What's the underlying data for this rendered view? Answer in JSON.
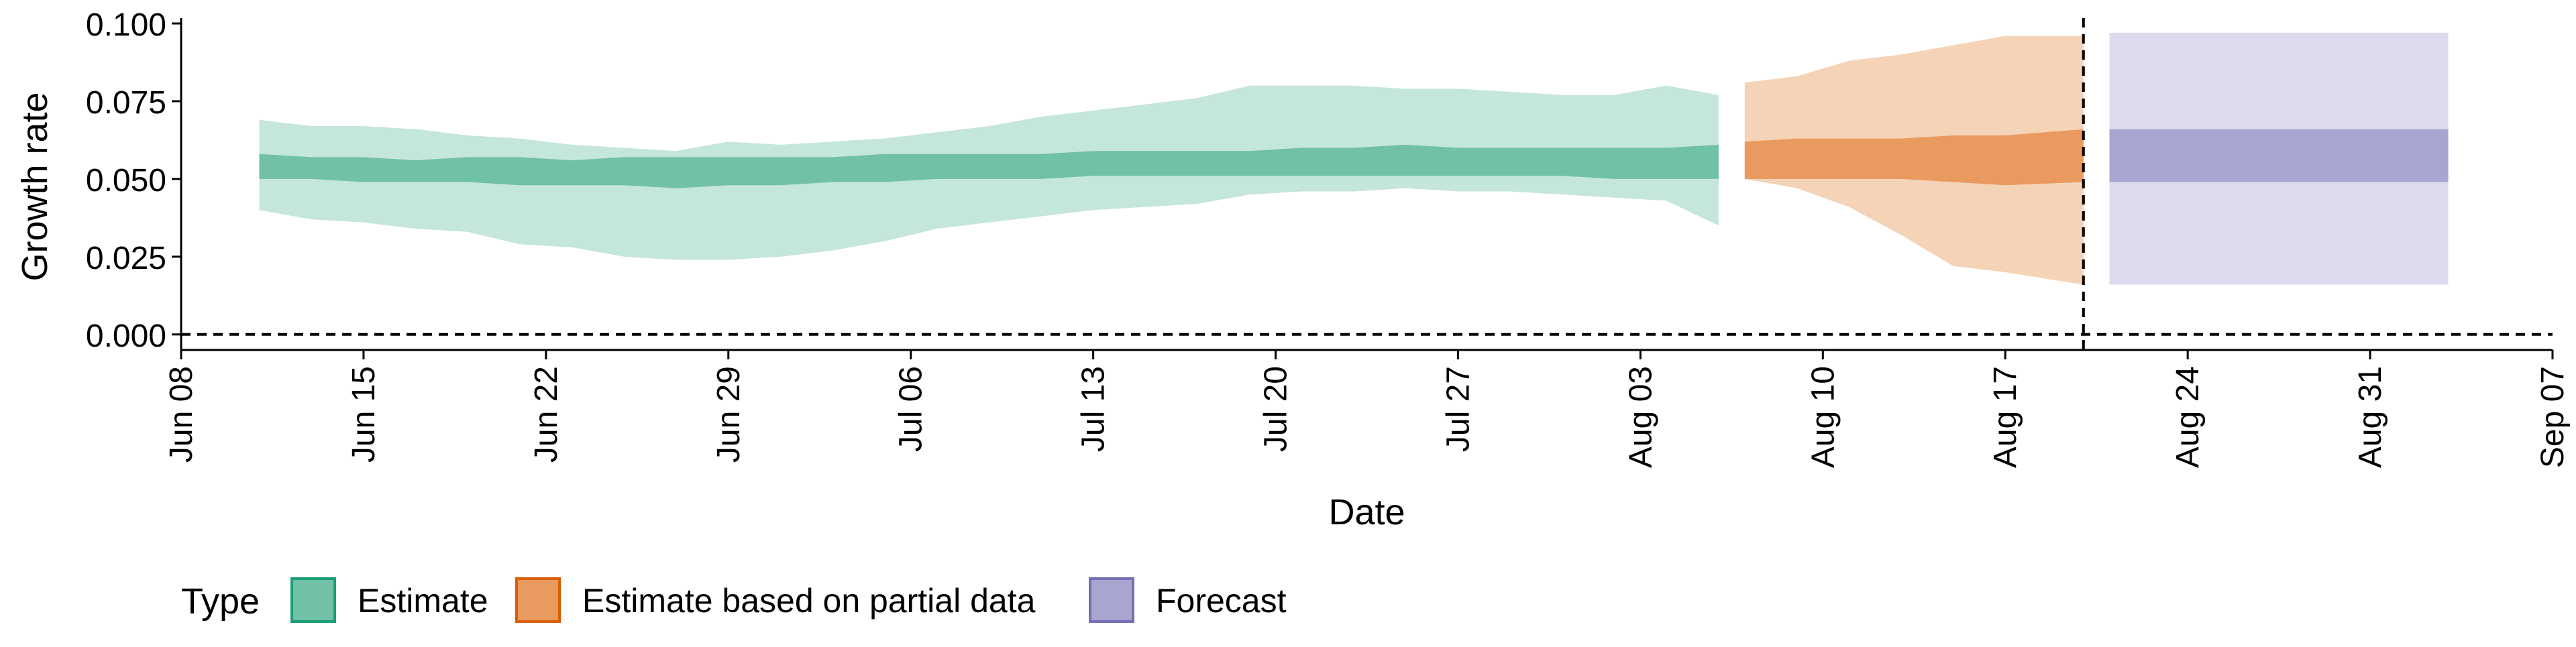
{
  "chart_data": {
    "type": "area",
    "xlabel": "Date",
    "ylabel": "Growth rate",
    "x_axis": {
      "type": "date",
      "range": [
        "2020-06-08",
        "2020-09-07"
      ],
      "tick_dates": [
        "2020-06-08",
        "2020-06-15",
        "2020-06-22",
        "2020-06-29",
        "2020-07-06",
        "2020-07-13",
        "2020-07-20",
        "2020-07-27",
        "2020-08-03",
        "2020-08-10",
        "2020-08-17",
        "2020-08-24",
        "2020-08-31",
        "2020-09-07"
      ],
      "tick_labels": [
        "Jun 08",
        "Jun 15",
        "Jun 22",
        "Jun 29",
        "Jul 06",
        "Jul 13",
        "Jul 20",
        "Jul 27",
        "Aug 03",
        "Aug 10",
        "Aug 17",
        "Aug 24",
        "Aug 31",
        "Sep 07"
      ]
    },
    "y_axis": {
      "range": [
        -0.005,
        0.1
      ],
      "ticks": [
        0.0,
        0.025,
        0.05,
        0.075,
        0.1
      ],
      "tick_labels": [
        "0.000",
        "0.025",
        "0.050",
        "0.075",
        "0.100"
      ]
    },
    "reference_lines": [
      {
        "orientation": "horizontal",
        "y": 0.0,
        "style": "dashed"
      },
      {
        "orientation": "vertical",
        "x": "2020-08-20",
        "style": "dashed"
      }
    ],
    "legend": {
      "title": "Type",
      "position": "bottom-left",
      "entries": [
        {
          "label": "Estimate",
          "fill": "#70c1a6",
          "stroke": "#1b9e77"
        },
        {
          "label": "Estimate based on partial data",
          "fill": "#e99a5f",
          "stroke": "#d95f02"
        },
        {
          "label": "Forecast",
          "fill": "#a8a5d1",
          "stroke": "#7570b3"
        }
      ]
    },
    "grid": false,
    "series": [
      {
        "name": "Estimate",
        "color_inner": "#70c1a6",
        "color_outer": "#c5e6da",
        "points": [
          {
            "date": "2020-06-11",
            "outer_low": 0.04,
            "inner_low": 0.05,
            "inner_high": 0.058,
            "outer_high": 0.069
          },
          {
            "date": "2020-06-13",
            "outer_low": 0.037,
            "inner_low": 0.05,
            "inner_high": 0.057,
            "outer_high": 0.067
          },
          {
            "date": "2020-06-15",
            "outer_low": 0.036,
            "inner_low": 0.049,
            "inner_high": 0.057,
            "outer_high": 0.067
          },
          {
            "date": "2020-06-17",
            "outer_low": 0.034,
            "inner_low": 0.049,
            "inner_high": 0.056,
            "outer_high": 0.066
          },
          {
            "date": "2020-06-19",
            "outer_low": 0.033,
            "inner_low": 0.049,
            "inner_high": 0.057,
            "outer_high": 0.064
          },
          {
            "date": "2020-06-21",
            "outer_low": 0.029,
            "inner_low": 0.048,
            "inner_high": 0.057,
            "outer_high": 0.063
          },
          {
            "date": "2020-06-23",
            "outer_low": 0.028,
            "inner_low": 0.048,
            "inner_high": 0.056,
            "outer_high": 0.061
          },
          {
            "date": "2020-06-25",
            "outer_low": 0.025,
            "inner_low": 0.048,
            "inner_high": 0.057,
            "outer_high": 0.06
          },
          {
            "date": "2020-06-27",
            "outer_low": 0.024,
            "inner_low": 0.047,
            "inner_high": 0.057,
            "outer_high": 0.059
          },
          {
            "date": "2020-06-29",
            "outer_low": 0.024,
            "inner_low": 0.048,
            "inner_high": 0.057,
            "outer_high": 0.062
          },
          {
            "date": "2020-07-01",
            "outer_low": 0.025,
            "inner_low": 0.048,
            "inner_high": 0.057,
            "outer_high": 0.061
          },
          {
            "date": "2020-07-03",
            "outer_low": 0.027,
            "inner_low": 0.049,
            "inner_high": 0.057,
            "outer_high": 0.062
          },
          {
            "date": "2020-07-05",
            "outer_low": 0.03,
            "inner_low": 0.049,
            "inner_high": 0.058,
            "outer_high": 0.063
          },
          {
            "date": "2020-07-07",
            "outer_low": 0.034,
            "inner_low": 0.05,
            "inner_high": 0.058,
            "outer_high": 0.065
          },
          {
            "date": "2020-07-09",
            "outer_low": 0.036,
            "inner_low": 0.05,
            "inner_high": 0.058,
            "outer_high": 0.067
          },
          {
            "date": "2020-07-11",
            "outer_low": 0.038,
            "inner_low": 0.05,
            "inner_high": 0.058,
            "outer_high": 0.07
          },
          {
            "date": "2020-07-13",
            "outer_low": 0.04,
            "inner_low": 0.051,
            "inner_high": 0.059,
            "outer_high": 0.072
          },
          {
            "date": "2020-07-15",
            "outer_low": 0.041,
            "inner_low": 0.051,
            "inner_high": 0.059,
            "outer_high": 0.074
          },
          {
            "date": "2020-07-17",
            "outer_low": 0.042,
            "inner_low": 0.051,
            "inner_high": 0.059,
            "outer_high": 0.076
          },
          {
            "date": "2020-07-19",
            "outer_low": 0.045,
            "inner_low": 0.051,
            "inner_high": 0.059,
            "outer_high": 0.08
          },
          {
            "date": "2020-07-21",
            "outer_low": 0.046,
            "inner_low": 0.051,
            "inner_high": 0.06,
            "outer_high": 0.08
          },
          {
            "date": "2020-07-23",
            "outer_low": 0.046,
            "inner_low": 0.051,
            "inner_high": 0.06,
            "outer_high": 0.08
          },
          {
            "date": "2020-07-25",
            "outer_low": 0.047,
            "inner_low": 0.051,
            "inner_high": 0.061,
            "outer_high": 0.079
          },
          {
            "date": "2020-07-27",
            "outer_low": 0.046,
            "inner_low": 0.051,
            "inner_high": 0.06,
            "outer_high": 0.079
          },
          {
            "date": "2020-07-29",
            "outer_low": 0.046,
            "inner_low": 0.051,
            "inner_high": 0.06,
            "outer_high": 0.078
          },
          {
            "date": "2020-07-31",
            "outer_low": 0.045,
            "inner_low": 0.051,
            "inner_high": 0.06,
            "outer_high": 0.077
          },
          {
            "date": "2020-08-02",
            "outer_low": 0.044,
            "inner_low": 0.05,
            "inner_high": 0.06,
            "outer_high": 0.077
          },
          {
            "date": "2020-08-04",
            "outer_low": 0.043,
            "inner_low": 0.05,
            "inner_high": 0.06,
            "outer_high": 0.08
          },
          {
            "date": "2020-08-06",
            "outer_low": 0.035,
            "inner_low": 0.05,
            "inner_high": 0.061,
            "outer_high": 0.077
          }
        ]
      },
      {
        "name": "Estimate based on partial data",
        "color_inner": "#e99a5f",
        "color_outer": "#f5d3b7",
        "points": [
          {
            "date": "2020-08-07",
            "outer_low": 0.05,
            "inner_low": 0.05,
            "inner_high": 0.062,
            "outer_high": 0.081
          },
          {
            "date": "2020-08-09",
            "outer_low": 0.047,
            "inner_low": 0.05,
            "inner_high": 0.063,
            "outer_high": 0.083
          },
          {
            "date": "2020-08-11",
            "outer_low": 0.041,
            "inner_low": 0.05,
            "inner_high": 0.063,
            "outer_high": 0.088
          },
          {
            "date": "2020-08-13",
            "outer_low": 0.032,
            "inner_low": 0.05,
            "inner_high": 0.063,
            "outer_high": 0.09
          },
          {
            "date": "2020-08-15",
            "outer_low": 0.022,
            "inner_low": 0.049,
            "inner_high": 0.064,
            "outer_high": 0.093
          },
          {
            "date": "2020-08-17",
            "outer_low": 0.02,
            "inner_low": 0.048,
            "inner_high": 0.064,
            "outer_high": 0.096
          },
          {
            "date": "2020-08-20",
            "outer_low": 0.016,
            "inner_low": 0.049,
            "inner_high": 0.066,
            "outer_high": 0.096
          }
        ]
      },
      {
        "name": "Forecast",
        "color_inner": "#a8a5d1",
        "color_outer": "#dcdbee",
        "points": [
          {
            "date": "2020-08-21",
            "outer_low": 0.016,
            "inner_low": 0.049,
            "inner_high": 0.066,
            "outer_high": 0.097
          },
          {
            "date": "2020-09-03",
            "outer_low": 0.016,
            "inner_low": 0.049,
            "inner_high": 0.066,
            "outer_high": 0.097
          }
        ]
      }
    ]
  }
}
